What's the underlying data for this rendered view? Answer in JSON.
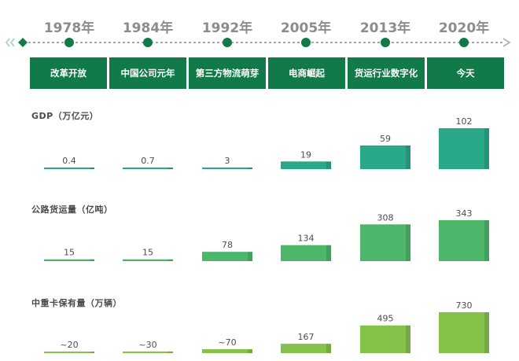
{
  "timeline": {
    "years": [
      "1978年",
      "1984年",
      "1992年",
      "2005年",
      "2013年",
      "2020年"
    ],
    "milestones": [
      "改革开放",
      "中国公司元年",
      "第三方物流萌芽",
      "电商崛起",
      "货运行业数字化",
      "今天"
    ]
  },
  "colors": {
    "timeline_dark": "#117a48",
    "timeline_line": "#a6a6a6",
    "gdp": "#2aa88a",
    "freight": "#4cb66a",
    "trucks": "#85c24a"
  },
  "chart_data": [
    {
      "type": "bar",
      "title": "GDP（万亿元）",
      "categories": [
        "1978年",
        "1984年",
        "1992年",
        "2005年",
        "2013年",
        "2020年"
      ],
      "values": [
        0.4,
        0.7,
        3,
        19,
        59,
        102
      ],
      "labels": [
        "0.4",
        "0.7",
        "3",
        "19",
        "59",
        "102"
      ],
      "ylim": [
        0,
        102
      ]
    },
    {
      "type": "bar",
      "title": "公路货运量（亿吨）",
      "categories": [
        "1978年",
        "1984年",
        "1992年",
        "2005年",
        "2013年",
        "2020年"
      ],
      "values": [
        15,
        15,
        78,
        134,
        308,
        343
      ],
      "labels": [
        "15",
        "15",
        "78",
        "134",
        "308",
        "343"
      ],
      "ylim": [
        0,
        343
      ]
    },
    {
      "type": "bar",
      "title": "中重卡保有量（万辆）",
      "categories": [
        "1978年",
        "1984年",
        "1992年",
        "2005年",
        "2013年",
        "2020年"
      ],
      "values": [
        20,
        30,
        70,
        167,
        495,
        730
      ],
      "labels": [
        "~20",
        "~30",
        "~70",
        "167",
        "495",
        "730"
      ],
      "ylim": [
        0,
        730
      ]
    }
  ]
}
